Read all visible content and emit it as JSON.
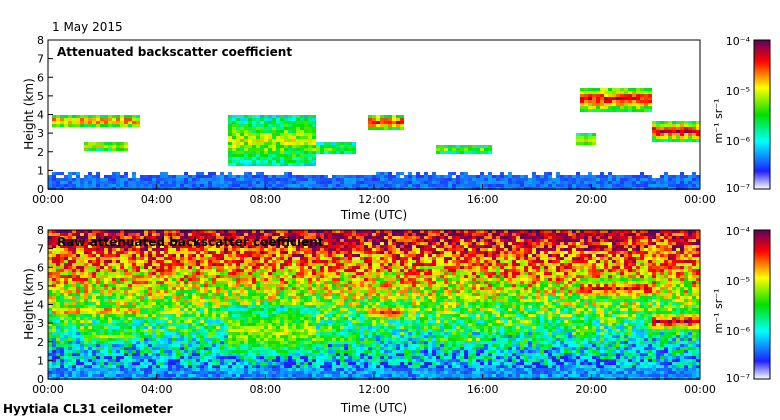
{
  "date_label": "1 May 2015",
  "footer_label": "Hyytiala CL31 ceilometer",
  "chart_data": [
    {
      "type": "heatmap",
      "title": "Attenuated backscatter coefficient",
      "xlabel": "Time (UTC)",
      "ylabel": "Height (km)",
      "xticks": [
        "00:00",
        "04:00",
        "08:00",
        "12:00",
        "16:00",
        "20:00",
        "00:00"
      ],
      "xlim_hours": [
        0,
        24
      ],
      "ylim": [
        0,
        8
      ],
      "yticks": [
        0,
        1,
        2,
        3,
        4,
        5,
        6,
        7,
        8
      ],
      "background": "white (values below 1e-7 masked)",
      "cloud_layers": [
        {
          "start_h": 0.1,
          "end_h": 3.4,
          "base_km": 3.3,
          "top_km": 4.0,
          "intensity": 0.75
        },
        {
          "start_h": 1.3,
          "end_h": 3.0,
          "base_km": 2.0,
          "top_km": 2.6,
          "intensity": 0.6
        },
        {
          "start_h": 6.6,
          "end_h": 9.8,
          "base_km": 1.2,
          "top_km": 4.0,
          "intensity": 0.55
        },
        {
          "start_h": 9.8,
          "end_h": 11.3,
          "base_km": 1.8,
          "top_km": 2.6,
          "intensity": 0.45
        },
        {
          "start_h": 11.8,
          "end_h": 13.1,
          "base_km": 3.2,
          "top_km": 4.0,
          "intensity": 0.85
        },
        {
          "start_h": 14.3,
          "end_h": 16.4,
          "base_km": 1.9,
          "top_km": 2.4,
          "intensity": 0.5
        },
        {
          "start_h": 19.6,
          "end_h": 22.3,
          "base_km": 4.2,
          "top_km": 5.5,
          "intensity": 0.85
        },
        {
          "start_h": 19.5,
          "end_h": 20.2,
          "base_km": 2.3,
          "top_km": 3.0,
          "intensity": 0.6
        },
        {
          "start_h": 22.2,
          "end_h": 24.0,
          "base_km": 2.6,
          "top_km": 3.6,
          "intensity": 0.9
        }
      ],
      "boundary_layer_top_km": 0.8
    },
    {
      "type": "heatmap",
      "title": "Raw attenuated backscatter coefficient",
      "xlabel": "Time (UTC)",
      "ylabel": "Height (km)",
      "xticks": [
        "00:00",
        "04:00",
        "08:00",
        "12:00",
        "16:00",
        "20:00",
        "00:00"
      ],
      "xlim_hours": [
        0,
        24
      ],
      "ylim": [
        0,
        8
      ],
      "yticks": [
        0,
        1,
        2,
        3,
        4,
        5,
        6,
        7,
        8
      ],
      "background": "noise increasing with height (blue near ground, red aloft)"
    }
  ],
  "colorbar": {
    "label": "m⁻¹ sr⁻¹",
    "scale": "log",
    "range": [
      1e-07,
      0.0001
    ],
    "tick_labels": [
      "10⁻⁴",
      "10⁻⁵",
      "10⁻⁶",
      "10⁻⁷"
    ],
    "colormap": [
      "#ffffff",
      "#2020ff",
      "#00ffff",
      "#00e000",
      "#ffff00",
      "#ff0000",
      "#600060"
    ]
  }
}
